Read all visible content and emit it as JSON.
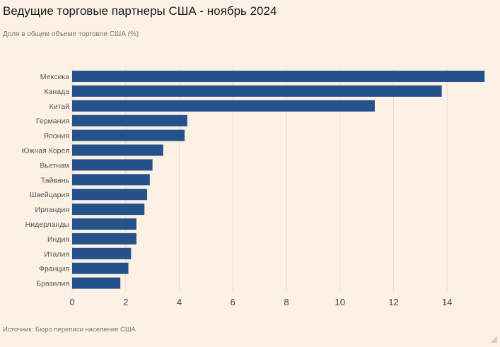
{
  "header": {
    "title": "Ведущие торговые партнеры США - ноябрь 2024",
    "subtitle": "Доля в общем объеме торговли США (%)"
  },
  "footer": {
    "source": "Источник: Бюро переписи населения США"
  },
  "colors": {
    "background": "#fdf1e6",
    "bar": "#25528a",
    "grid": "#e8ddd2",
    "label": "#555555"
  },
  "chart_data": {
    "type": "bar",
    "orientation": "horizontal",
    "title": "Ведущие торговые партнеры США - ноябрь 2024",
    "subtitle": "Доля в общем объеме торговли США (%)",
    "xlabel": "",
    "ylabel": "",
    "xlim": [
      0,
      15.5
    ],
    "xticks": [
      0,
      2,
      4,
      6,
      8,
      10,
      12,
      14
    ],
    "grid": true,
    "categories": [
      "Мексика",
      "Канада",
      "Китай",
      "Германия",
      "Япония",
      "Южная Корея",
      "Вьетнам",
      "Тайвань",
      "Швейцария",
      "Ирландия",
      "Нидерланды",
      "Индия",
      "Италия",
      "Франция",
      "Бразилия"
    ],
    "values": [
      15.4,
      13.8,
      11.3,
      4.3,
      4.2,
      3.4,
      3.0,
      2.9,
      2.8,
      2.7,
      2.4,
      2.4,
      2.2,
      2.1,
      1.8
    ]
  }
}
